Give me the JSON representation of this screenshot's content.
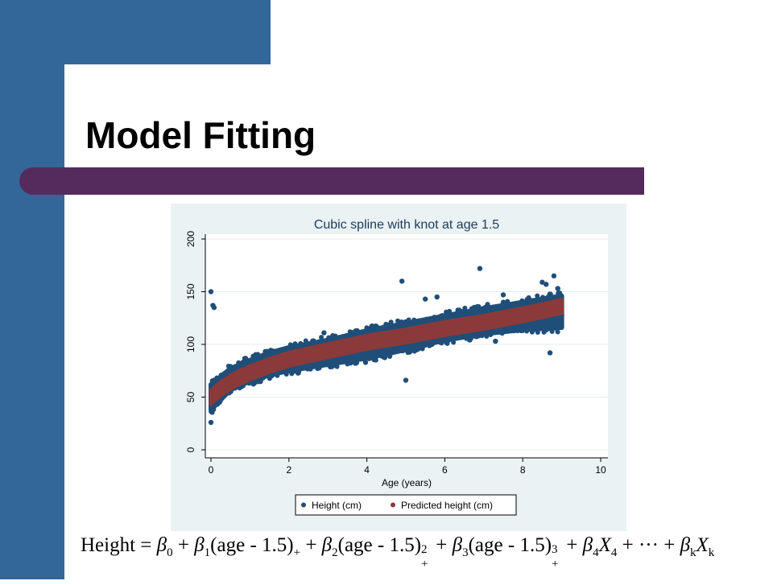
{
  "slide": {
    "title": "Model Fitting",
    "colors": {
      "sidebar": "#336699",
      "title_rule": "#552b5e",
      "chart_background": "#eaf2f3"
    }
  },
  "chart_data": {
    "type": "scatter",
    "title": "Cubic spline with knot at age 1.5",
    "xlabel": "Age (years)",
    "ylabel": "",
    "xlim": [
      0,
      10
    ],
    "ylim": [
      0,
      200
    ],
    "xticks": [
      0,
      2,
      4,
      6,
      8,
      10
    ],
    "yticks": [
      0,
      50,
      100,
      150,
      200
    ],
    "grid": true,
    "legend_position": "bottom",
    "series": [
      {
        "name": "Height (cm)",
        "color": "#1f4e79",
        "band_lower": [
          [
            0,
            38
          ],
          [
            0.5,
            57
          ],
          [
            1,
            65
          ],
          [
            1.5,
            71
          ],
          [
            2,
            75
          ],
          [
            3,
            81
          ],
          [
            4,
            87
          ],
          [
            5,
            95
          ],
          [
            6,
            104
          ],
          [
            7,
            110
          ],
          [
            8,
            114
          ],
          [
            9,
            116
          ]
        ],
        "band_upper": [
          [
            0,
            62
          ],
          [
            0.5,
            77
          ],
          [
            1,
            85
          ],
          [
            1.5,
            92
          ],
          [
            2,
            97
          ],
          [
            3,
            104
          ],
          [
            4,
            113
          ],
          [
            5,
            120
          ],
          [
            6,
            127
          ],
          [
            7,
            134
          ],
          [
            8,
            140
          ],
          [
            9,
            146
          ]
        ],
        "outliers": [
          [
            0,
            150
          ],
          [
            0.05,
            137
          ],
          [
            0.08,
            135
          ],
          [
            0,
            26
          ],
          [
            0.5,
            79
          ],
          [
            2.2,
            82
          ],
          [
            2.9,
            111
          ],
          [
            3.9,
            104
          ],
          [
            4.6,
            96
          ],
          [
            4.9,
            160
          ],
          [
            5,
            66
          ],
          [
            5.5,
            143
          ],
          [
            5.8,
            145
          ],
          [
            6.5,
            113
          ],
          [
            6.9,
            172
          ],
          [
            7.3,
            103
          ],
          [
            7.5,
            140
          ],
          [
            7.5,
            147
          ],
          [
            8.5,
            159
          ],
          [
            8.6,
            157
          ],
          [
            8.7,
            92
          ],
          [
            8.8,
            165
          ],
          [
            8.9,
            153
          ],
          [
            9,
            128
          ]
        ]
      },
      {
        "name": "Predicted height (cm)",
        "color": "#8b3a3a",
        "curve": [
          [
            0,
            50
          ],
          [
            0.25,
            58
          ],
          [
            0.5,
            64
          ],
          [
            0.75,
            69
          ],
          [
            1,
            73
          ],
          [
            1.5,
            80
          ],
          [
            2,
            86
          ],
          [
            3,
            94
          ],
          [
            4,
            102
          ],
          [
            5,
            108
          ],
          [
            6,
            115
          ],
          [
            7,
            121
          ],
          [
            8,
            128
          ],
          [
            9,
            136
          ]
        ],
        "band_halfwidth": 6
      }
    ]
  },
  "equation": {
    "lhs": "Height",
    "terms": [
      "β",
      "0",
      "+",
      "β",
      "1",
      "(age - 1.5)",
      "+",
      "β",
      "2",
      "(age - 1.5)",
      "2",
      "+",
      "β",
      "3",
      "(age - 1.5)",
      "3",
      "+",
      "β",
      "4",
      "X",
      "4",
      "+ ··· +",
      "β",
      "k",
      "X",
      "k"
    ]
  }
}
